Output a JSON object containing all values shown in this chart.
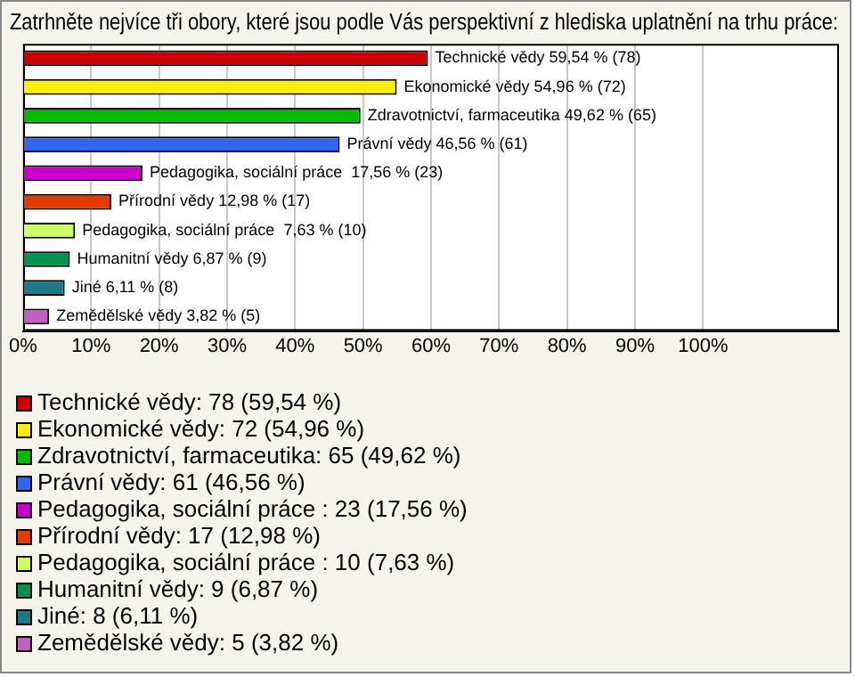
{
  "chart_data": {
    "type": "bar",
    "orientation": "horizontal",
    "title": "Zatrhněte nejvíce tři obory, které jsou podle Vás perspektivní z hlediska uplatnění na trhu práce:",
    "categories": [
      null,
      null,
      null,
      null,
      null,
      null,
      null,
      null,
      null,
      null
    ],
    "series": [
      {
        "name": "Technické vědy: 78 (59,54 %)",
        "color": "#cc0000",
        "values": [
          59.54,
          null,
          null,
          null,
          null,
          null,
          null,
          null,
          null,
          null
        ],
        "value_labels": [
          "Technické vědy 59,54 % (78)",
          null,
          null,
          null,
          null,
          null,
          null,
          null,
          null,
          null
        ]
      },
      {
        "name": "Ekonomické vědy: 72 (54,96 %)",
        "color": "#ffee00",
        "values": [
          null,
          54.96,
          null,
          null,
          null,
          null,
          null,
          null,
          null,
          null
        ],
        "value_labels": [
          null,
          "Ekonomické vědy 54,96 % (72)",
          null,
          null,
          null,
          null,
          null,
          null,
          null,
          null
        ]
      },
      {
        "name": "Zdravotnictví, farmaceutika: 65 (49,62 %)",
        "color": "#00bb00",
        "values": [
          null,
          null,
          49.62,
          null,
          null,
          null,
          null,
          null,
          null,
          null
        ],
        "value_labels": [
          null,
          null,
          "Zdravotnictví, farmaceutika 49,62 % (65)",
          null,
          null,
          null,
          null,
          null,
          null,
          null
        ]
      },
      {
        "name": "Právní vědy: 61 (46,56 %)",
        "color": "#3366ee",
        "values": [
          null,
          null,
          null,
          46.56,
          null,
          null,
          null,
          null,
          null,
          null
        ],
        "value_labels": [
          null,
          null,
          null,
          "Právní vědy 46,56 % (61)",
          null,
          null,
          null,
          null,
          null,
          null
        ]
      },
      {
        "name": "Pedagogika, sociální práce : 23 (17,56 %)",
        "color": "#cc00cc",
        "values": [
          null,
          null,
          null,
          null,
          17.56,
          null,
          null,
          null,
          null,
          null
        ],
        "value_labels": [
          null,
          null,
          null,
          null,
          "Pedagogika, sociální práce  17,56 % (23)",
          null,
          null,
          null,
          null,
          null
        ]
      },
      {
        "name": "Přírodní vědy: 17 (12,98 %)",
        "color": "#e03c00",
        "values": [
          null,
          null,
          null,
          null,
          null,
          12.98,
          null,
          null,
          null,
          null
        ],
        "value_labels": [
          null,
          null,
          null,
          null,
          null,
          "Přírodní vědy 12,98 % (17)",
          null,
          null,
          null,
          null
        ]
      },
      {
        "name": "Pedagogika, sociální práce : 10 (7,63 %)",
        "color": "#ccff66",
        "values": [
          null,
          null,
          null,
          null,
          null,
          null,
          7.63,
          null,
          null,
          null
        ],
        "value_labels": [
          null,
          null,
          null,
          null,
          null,
          null,
          "Pedagogika, sociální práce  7,63 % (10)",
          null,
          null,
          null
        ]
      },
      {
        "name": "Humanitní vědy: 9 (6,87 %)",
        "color": "#009050",
        "values": [
          null,
          null,
          null,
          null,
          null,
          null,
          null,
          6.87,
          null,
          null
        ],
        "value_labels": [
          null,
          null,
          null,
          null,
          null,
          null,
          null,
          "Humanitní vědy 6,87 % (9)",
          null,
          null
        ]
      },
      {
        "name": "Jiné: 8 (6,11 %)",
        "color": "#1a7a8a",
        "values": [
          null,
          null,
          null,
          null,
          null,
          null,
          null,
          null,
          6.11,
          null
        ],
        "value_labels": [
          null,
          null,
          null,
          null,
          null,
          null,
          null,
          null,
          "Jiné 6,11 % (8)",
          null
        ]
      },
      {
        "name": "Zemědělské vědy: 5 (3,82 %)",
        "color": "#c060c0",
        "values": [
          null,
          null,
          null,
          null,
          null,
          null,
          null,
          null,
          null,
          3.82
        ],
        "value_labels": [
          null,
          null,
          null,
          null,
          null,
          null,
          null,
          null,
          null,
          "Zemědělské vědy 3,82 % (5)"
        ]
      }
    ],
    "xlim": [
      0,
      120
    ],
    "xticks": [
      {
        "value": 0,
        "label": "0%"
      },
      {
        "value": 10,
        "label": "10%"
      },
      {
        "value": 20,
        "label": "20%"
      },
      {
        "value": 30,
        "label": "30%"
      },
      {
        "value": 40,
        "label": "40%"
      },
      {
        "value": 50,
        "label": "50%"
      },
      {
        "value": 60,
        "label": "60%"
      },
      {
        "value": 70,
        "label": "70%"
      },
      {
        "value": 80,
        "label": "80%"
      },
      {
        "value": 90,
        "label": "90%"
      },
      {
        "value": 100,
        "label": "100%"
      }
    ],
    "grid": "x",
    "tick_labels": "x",
    "legend": "bottom"
  }
}
